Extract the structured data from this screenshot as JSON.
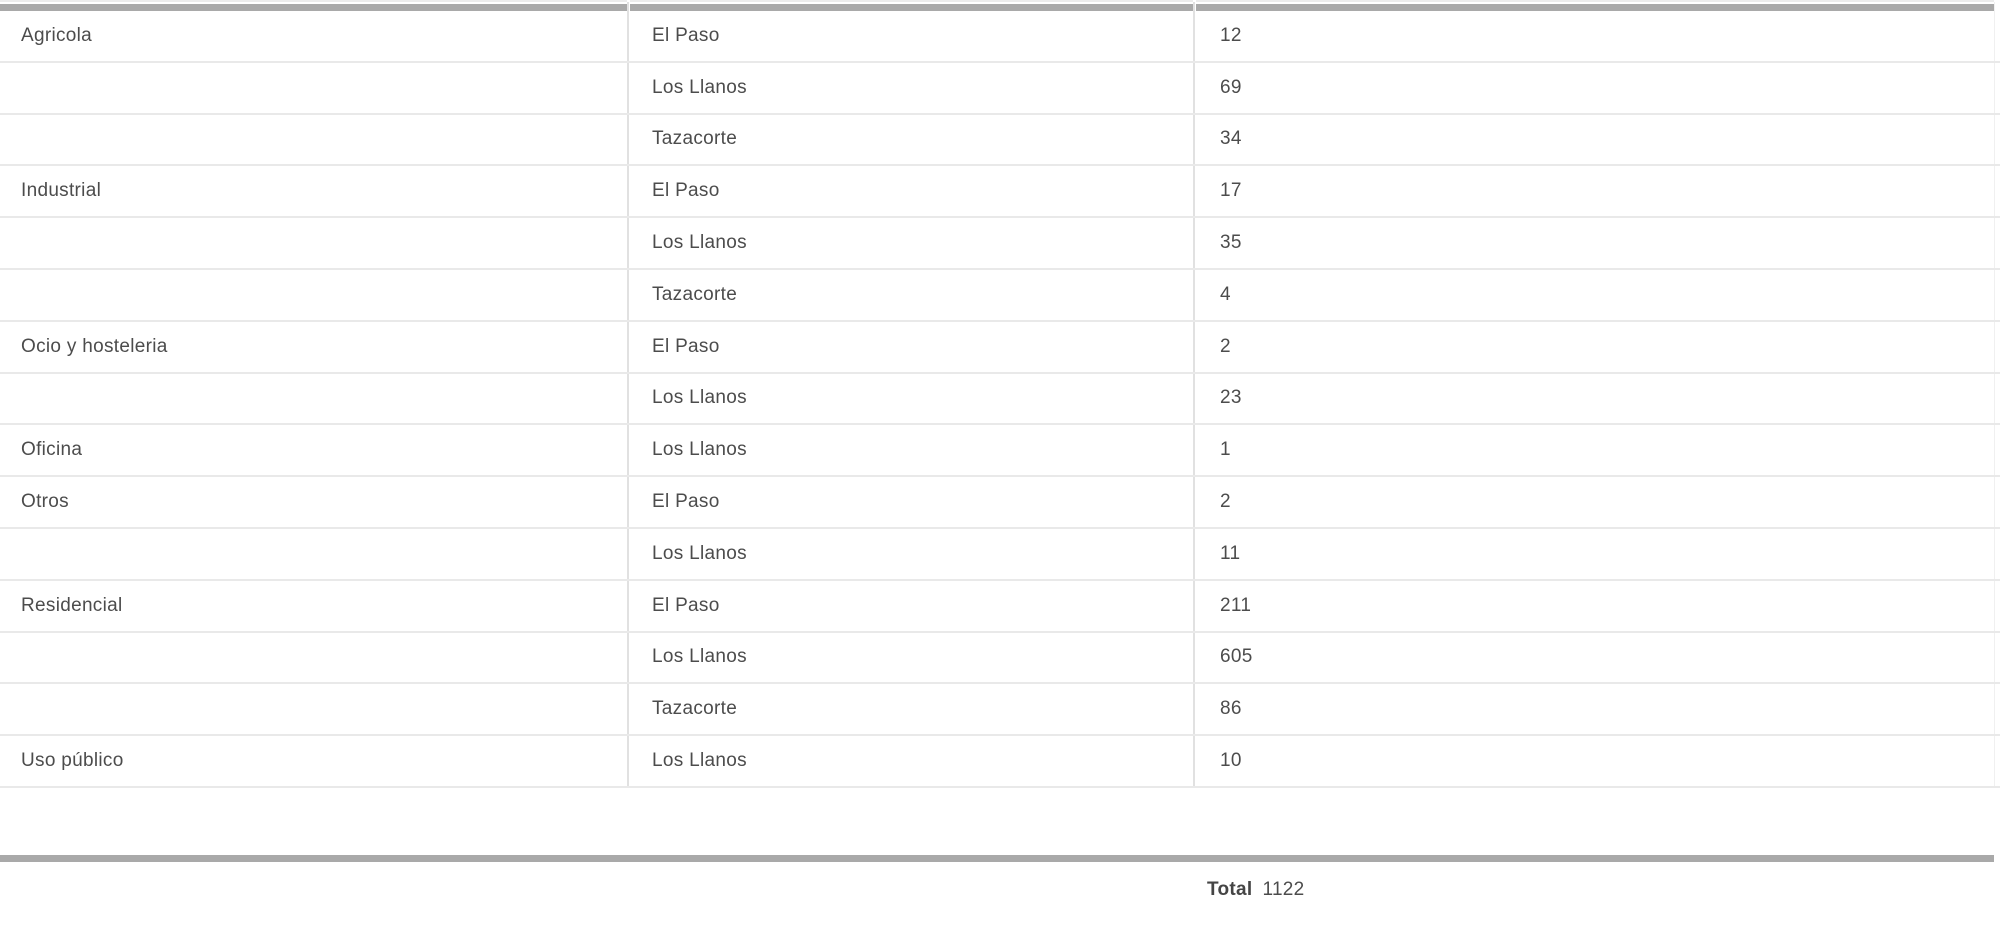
{
  "colors": {
    "scroll_bar_gray": "#a9a9a9",
    "row_border": "#e9e9e9",
    "column_divider": "#e1e1e1",
    "text": "#4c4c4c"
  },
  "table": {
    "rows": [
      {
        "category": "Agricola",
        "municipality": "El Paso",
        "value": "12"
      },
      {
        "category": "",
        "municipality": "Los Llanos",
        "value": "69"
      },
      {
        "category": "",
        "municipality": "Tazacorte",
        "value": "34"
      },
      {
        "category": "Industrial",
        "municipality": "El Paso",
        "value": "17"
      },
      {
        "category": "",
        "municipality": "Los Llanos",
        "value": "35"
      },
      {
        "category": "",
        "municipality": "Tazacorte",
        "value": "4"
      },
      {
        "category": "Ocio y hosteleria",
        "municipality": "El Paso",
        "value": "2"
      },
      {
        "category": "",
        "municipality": "Los Llanos",
        "value": "23"
      },
      {
        "category": "Oficina",
        "municipality": "Los Llanos",
        "value": "1"
      },
      {
        "category": "Otros",
        "municipality": "El Paso",
        "value": "2"
      },
      {
        "category": "",
        "municipality": "Los Llanos",
        "value": "11"
      },
      {
        "category": "Residencial",
        "municipality": "El Paso",
        "value": "211"
      },
      {
        "category": "",
        "municipality": "Los Llanos",
        "value": "605"
      },
      {
        "category": "",
        "municipality": "Tazacorte",
        "value": "86"
      },
      {
        "category": "Uso público",
        "municipality": "Los Llanos",
        "value": "10"
      }
    ],
    "total": {
      "label": "Total",
      "value": "1122"
    }
  },
  "chart_data": {
    "type": "table",
    "rows": [
      [
        "Agricola",
        "El Paso",
        12
      ],
      [
        "Agricola",
        "Los Llanos",
        69
      ],
      [
        "Agricola",
        "Tazacorte",
        34
      ],
      [
        "Industrial",
        "El Paso",
        17
      ],
      [
        "Industrial",
        "Los Llanos",
        35
      ],
      [
        "Industrial",
        "Tazacorte",
        4
      ],
      [
        "Ocio y hosteleria",
        "El Paso",
        2
      ],
      [
        "Ocio y hosteleria",
        "Los Llanos",
        23
      ],
      [
        "Oficina",
        "Los Llanos",
        1
      ],
      [
        "Otros",
        "El Paso",
        2
      ],
      [
        "Otros",
        "Los Llanos",
        11
      ],
      [
        "Residencial",
        "El Paso",
        211
      ],
      [
        "Residencial",
        "Los Llanos",
        605
      ],
      [
        "Residencial",
        "Tazacorte",
        86
      ],
      [
        "Uso público",
        "Los Llanos",
        10
      ]
    ],
    "total_label": "Total",
    "total": 1122
  }
}
